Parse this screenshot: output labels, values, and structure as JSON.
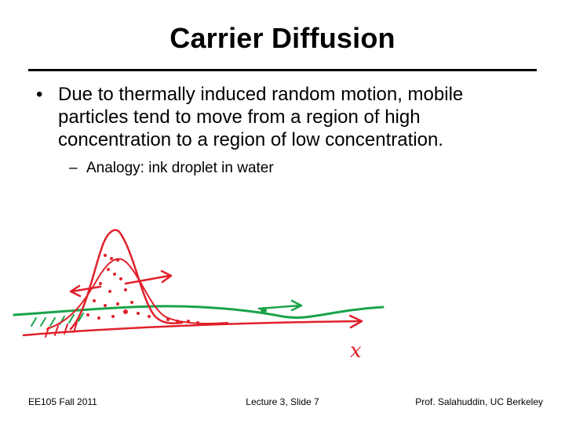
{
  "slide": {
    "title": "Carrier Diffusion",
    "bullet": {
      "marker": "•",
      "text": "Due to thermally induced random motion, mobile particles tend to move from a region of high concentration to a region of low concentration."
    },
    "subbullet": {
      "marker": "–",
      "text": "Analogy: ink droplet in water"
    },
    "sketch": {
      "axis_label": "x",
      "colors": {
        "red": "#e0202a",
        "green": "#1aa34a"
      }
    },
    "footer": {
      "left": "EE105 Fall 2011",
      "center": "Lecture 3, Slide 7",
      "right": "Prof. Salahuddin, UC Berkeley"
    }
  }
}
